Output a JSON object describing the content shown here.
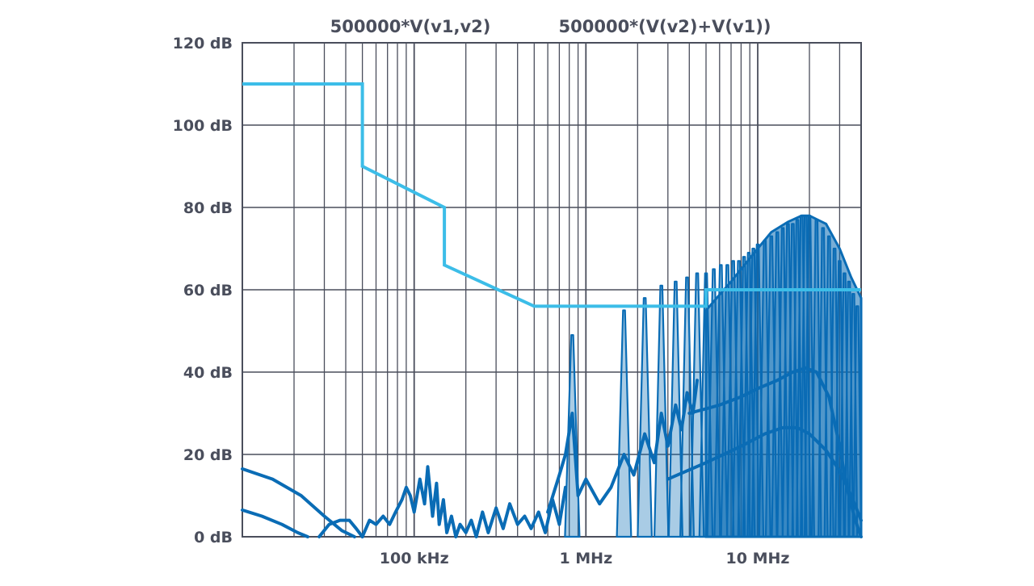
{
  "chart_data": {
    "type": "line",
    "x_scale": "log",
    "x_unit": "Hz",
    "xlim": [
      10000,
      40000000
    ],
    "ylim": [
      0,
      120
    ],
    "grid": true,
    "y_ticks": [
      {
        "value": 0,
        "label": "0 dB"
      },
      {
        "value": 20,
        "label": "20 dB"
      },
      {
        "value": 40,
        "label": "40 dB"
      },
      {
        "value": 60,
        "label": "60 dB"
      },
      {
        "value": 80,
        "label": "80 dB"
      },
      {
        "value": 100,
        "label": "100 dB"
      },
      {
        "value": 120,
        "label": "120 dB"
      }
    ],
    "x_ticks": [
      {
        "value": 100000,
        "label": "100 kHz"
      },
      {
        "value": 1000000,
        "label": "1 MHz"
      },
      {
        "value": 10000000,
        "label": "10 MHz"
      }
    ],
    "series_titles": [
      "500000*V(v1,v2)",
      "500000*(V(v2)+V(v1))"
    ],
    "colors": {
      "limit_line": "#3cbde8",
      "spectrum": "#0a6cb5",
      "grid": "#4a4e5c",
      "text": "#4a4e5c"
    },
    "series": [
      {
        "role": "limit-line",
        "x": [
          10000,
          50000,
          50000,
          150000,
          150000,
          500000,
          5000000,
          5000000,
          40000000
        ],
        "y": [
          110,
          110,
          90,
          80,
          66,
          56,
          56,
          60,
          60
        ]
      },
      {
        "role": "harmonic-peaks",
        "x": [
          833000,
          1666000,
          2200000,
          2750000,
          3330000,
          3880000,
          4440000,
          5000000,
          5550000,
          6100000,
          6660000,
          7200000,
          7770000,
          8330000,
          8880000,
          9440000,
          10000000,
          11000000,
          12000000,
          13000000,
          14000000,
          15000000,
          16000000,
          17000000,
          18000000,
          19000000,
          20000000,
          22000000,
          24000000,
          26000000,
          28000000,
          30000000,
          32000000,
          34000000,
          36000000,
          38000000
        ],
        "y": [
          49,
          55,
          58,
          61,
          62,
          63,
          64,
          64,
          65,
          66,
          66,
          67,
          67,
          68,
          69,
          70,
          71,
          72,
          73,
          74,
          75,
          76,
          76,
          77,
          78,
          78,
          78,
          77,
          75,
          73,
          70,
          67,
          64,
          62,
          59,
          56
        ]
      },
      {
        "role": "spectrum-upper-envelope",
        "x": [
          5000000,
          7000000,
          10000000,
          12000000,
          15000000,
          18000000,
          20000000,
          25000000,
          30000000,
          35000000,
          40000000
        ],
        "y": [
          55,
          62,
          70,
          74,
          76.5,
          78,
          78,
          76,
          70,
          63,
          58
        ]
      },
      {
        "role": "spectrum-mid-envelope",
        "x": [
          4000000,
          6000000,
          8000000,
          10000000,
          13000000,
          16000000,
          19000000,
          22000000,
          26000000,
          30000000,
          33000000,
          37000000,
          40000000
        ],
        "y": [
          30,
          32,
          34,
          36,
          38,
          40,
          41,
          40,
          34,
          22,
          12,
          4,
          0
        ]
      },
      {
        "role": "spectrum-lower-envelope",
        "x": [
          3000000,
          5000000,
          8000000,
          11000000,
          14000000,
          17000000,
          20000000,
          25000000,
          30000000,
          35000000,
          40000000
        ],
        "y": [
          14,
          18,
          22,
          25,
          26.5,
          26.5,
          25,
          21,
          16,
          10,
          4
        ]
      },
      {
        "role": "low-frequency-arc-1",
        "x": [
          10000,
          15000,
          22000,
          30000,
          38000,
          45000
        ],
        "y": [
          16.5,
          14,
          10,
          5,
          1.5,
          0
        ]
      },
      {
        "role": "low-frequency-arc-2",
        "x": [
          10000,
          13000,
          17000,
          21000,
          24000
        ],
        "y": [
          6.5,
          5,
          3,
          1,
          0
        ]
      },
      {
        "role": "low-frequency-arc-3",
        "x": [
          28000,
          32000,
          37000,
          42000,
          46000,
          50000
        ],
        "y": [
          0,
          3,
          4,
          4,
          2,
          0
        ]
      },
      {
        "role": "low-frequency-ripple",
        "x": [
          50000,
          55000,
          60000,
          66000,
          72000,
          78000,
          85000,
          90000,
          95000,
          100000,
          108000,
          115000,
          120000,
          128000,
          135000,
          140000,
          148000,
          155000,
          165000,
          175000,
          185000,
          200000,
          215000,
          230000,
          250000,
          270000,
          300000,
          330000,
          360000,
          400000,
          440000,
          480000,
          530000,
          580000,
          640000,
          700000,
          760000
        ],
        "y": [
          0,
          4,
          3,
          5,
          3,
          6,
          9,
          12,
          10,
          6,
          14,
          8,
          17,
          5,
          13,
          3,
          9,
          1,
          5,
          0,
          3,
          1,
          4,
          0,
          6,
          1,
          7,
          2,
          8,
          3,
          5,
          2,
          6,
          1,
          9,
          3,
          12
        ]
      },
      {
        "role": "mid-frequency-trace",
        "x": [
          600000,
          700000,
          760000,
          833000,
          900000,
          1000000,
          1200000,
          1400000,
          1666000,
          1900000,
          2200000,
          2500000,
          2750000,
          3000000,
          3330000,
          3600000,
          3880000,
          4200000,
          4440000
        ],
        "y": [
          6,
          15,
          20,
          30,
          10,
          14,
          8,
          12,
          20,
          15,
          25,
          18,
          30,
          22,
          32,
          26,
          35,
          30,
          38
        ]
      }
    ]
  }
}
